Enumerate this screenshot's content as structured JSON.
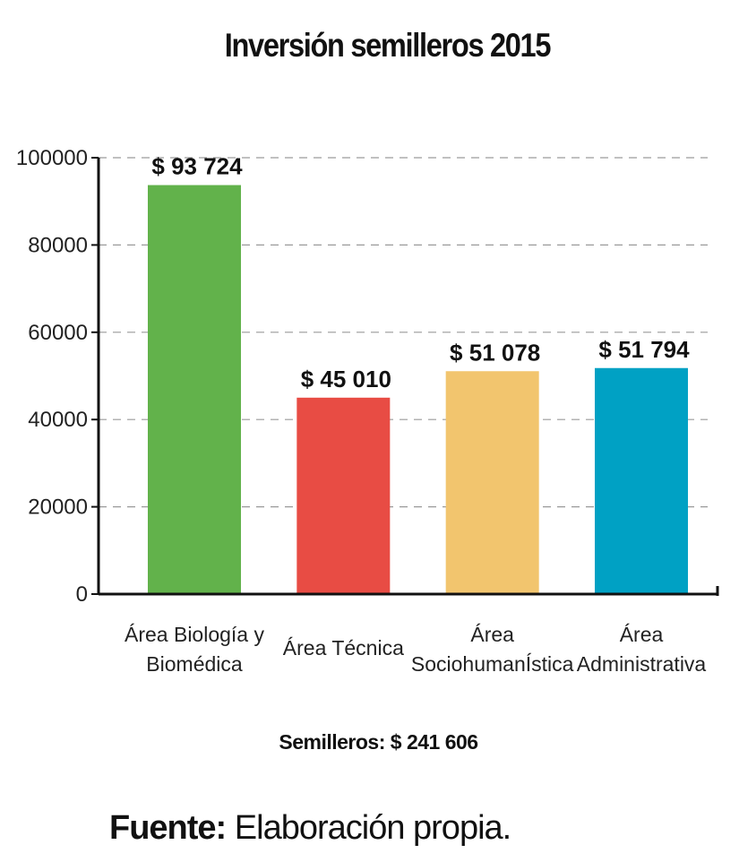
{
  "chart_data": {
    "type": "bar",
    "title": "Inversión semilleros 2015",
    "categories": [
      [
        "Área Biología y",
        "Biomédica"
      ],
      [
        "Área Técnica"
      ],
      [
        "Área",
        "SociohumanÍstica"
      ],
      [
        "Área",
        "Administrativa"
      ]
    ],
    "values": [
      93724,
      45010,
      51078,
      51794
    ],
    "value_labels": [
      "$ 93 724",
      "$ 45 010",
      "$ 51 078",
      "$ 51 794"
    ],
    "colors": [
      "#62b24b",
      "#e84c44",
      "#f2c56e",
      "#00a1c4"
    ],
    "ylim": [
      0,
      100000
    ],
    "yticks": [
      0,
      20000,
      40000,
      60000,
      80000,
      100000
    ],
    "ytick_labels": [
      "0",
      "20000",
      "40000",
      "60000",
      "80000",
      "100000"
    ],
    "grid": "dashed-horizontal",
    "xlabel": "",
    "ylabel": ""
  },
  "total": "Semilleros: $ 241 606",
  "source": {
    "key": "Fuente:",
    "text": " Elaboración propia."
  }
}
